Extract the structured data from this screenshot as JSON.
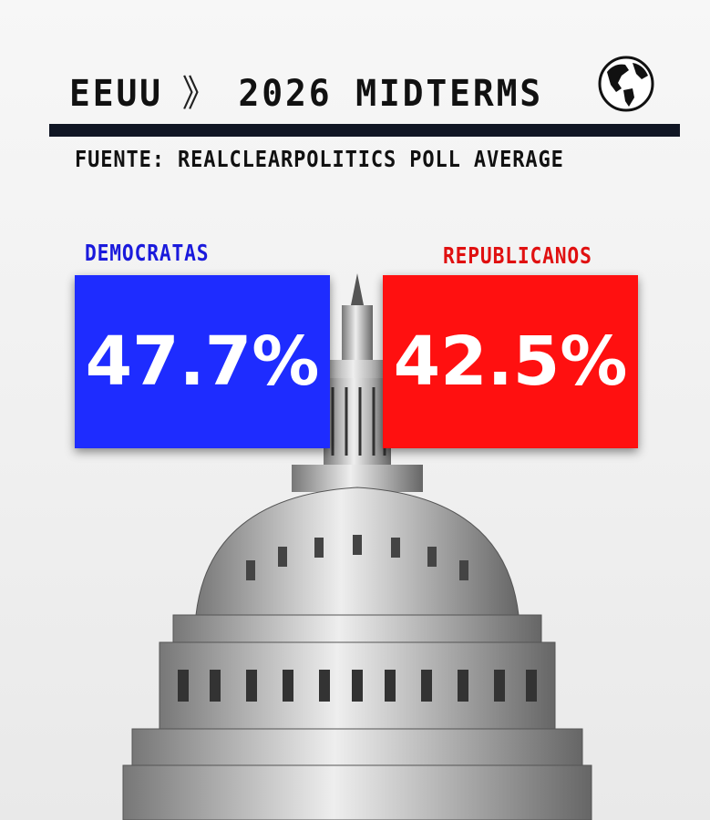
{
  "header": {
    "title_left": "EEUU",
    "separator": "》",
    "title_right": "2026 MIDTERMS",
    "icon": "globe-icon"
  },
  "source": "FUENTE: REALCLEARPOLITICS POLL AVERAGE",
  "parties": {
    "democrats": {
      "label": "DEMOCRATAS",
      "value": "47.7%",
      "color": "#1e2cff"
    },
    "republicans": {
      "label": "REPUBLICANOS",
      "value": "42.5%",
      "color": "#ff1010"
    }
  },
  "image": "us-capitol-dome"
}
